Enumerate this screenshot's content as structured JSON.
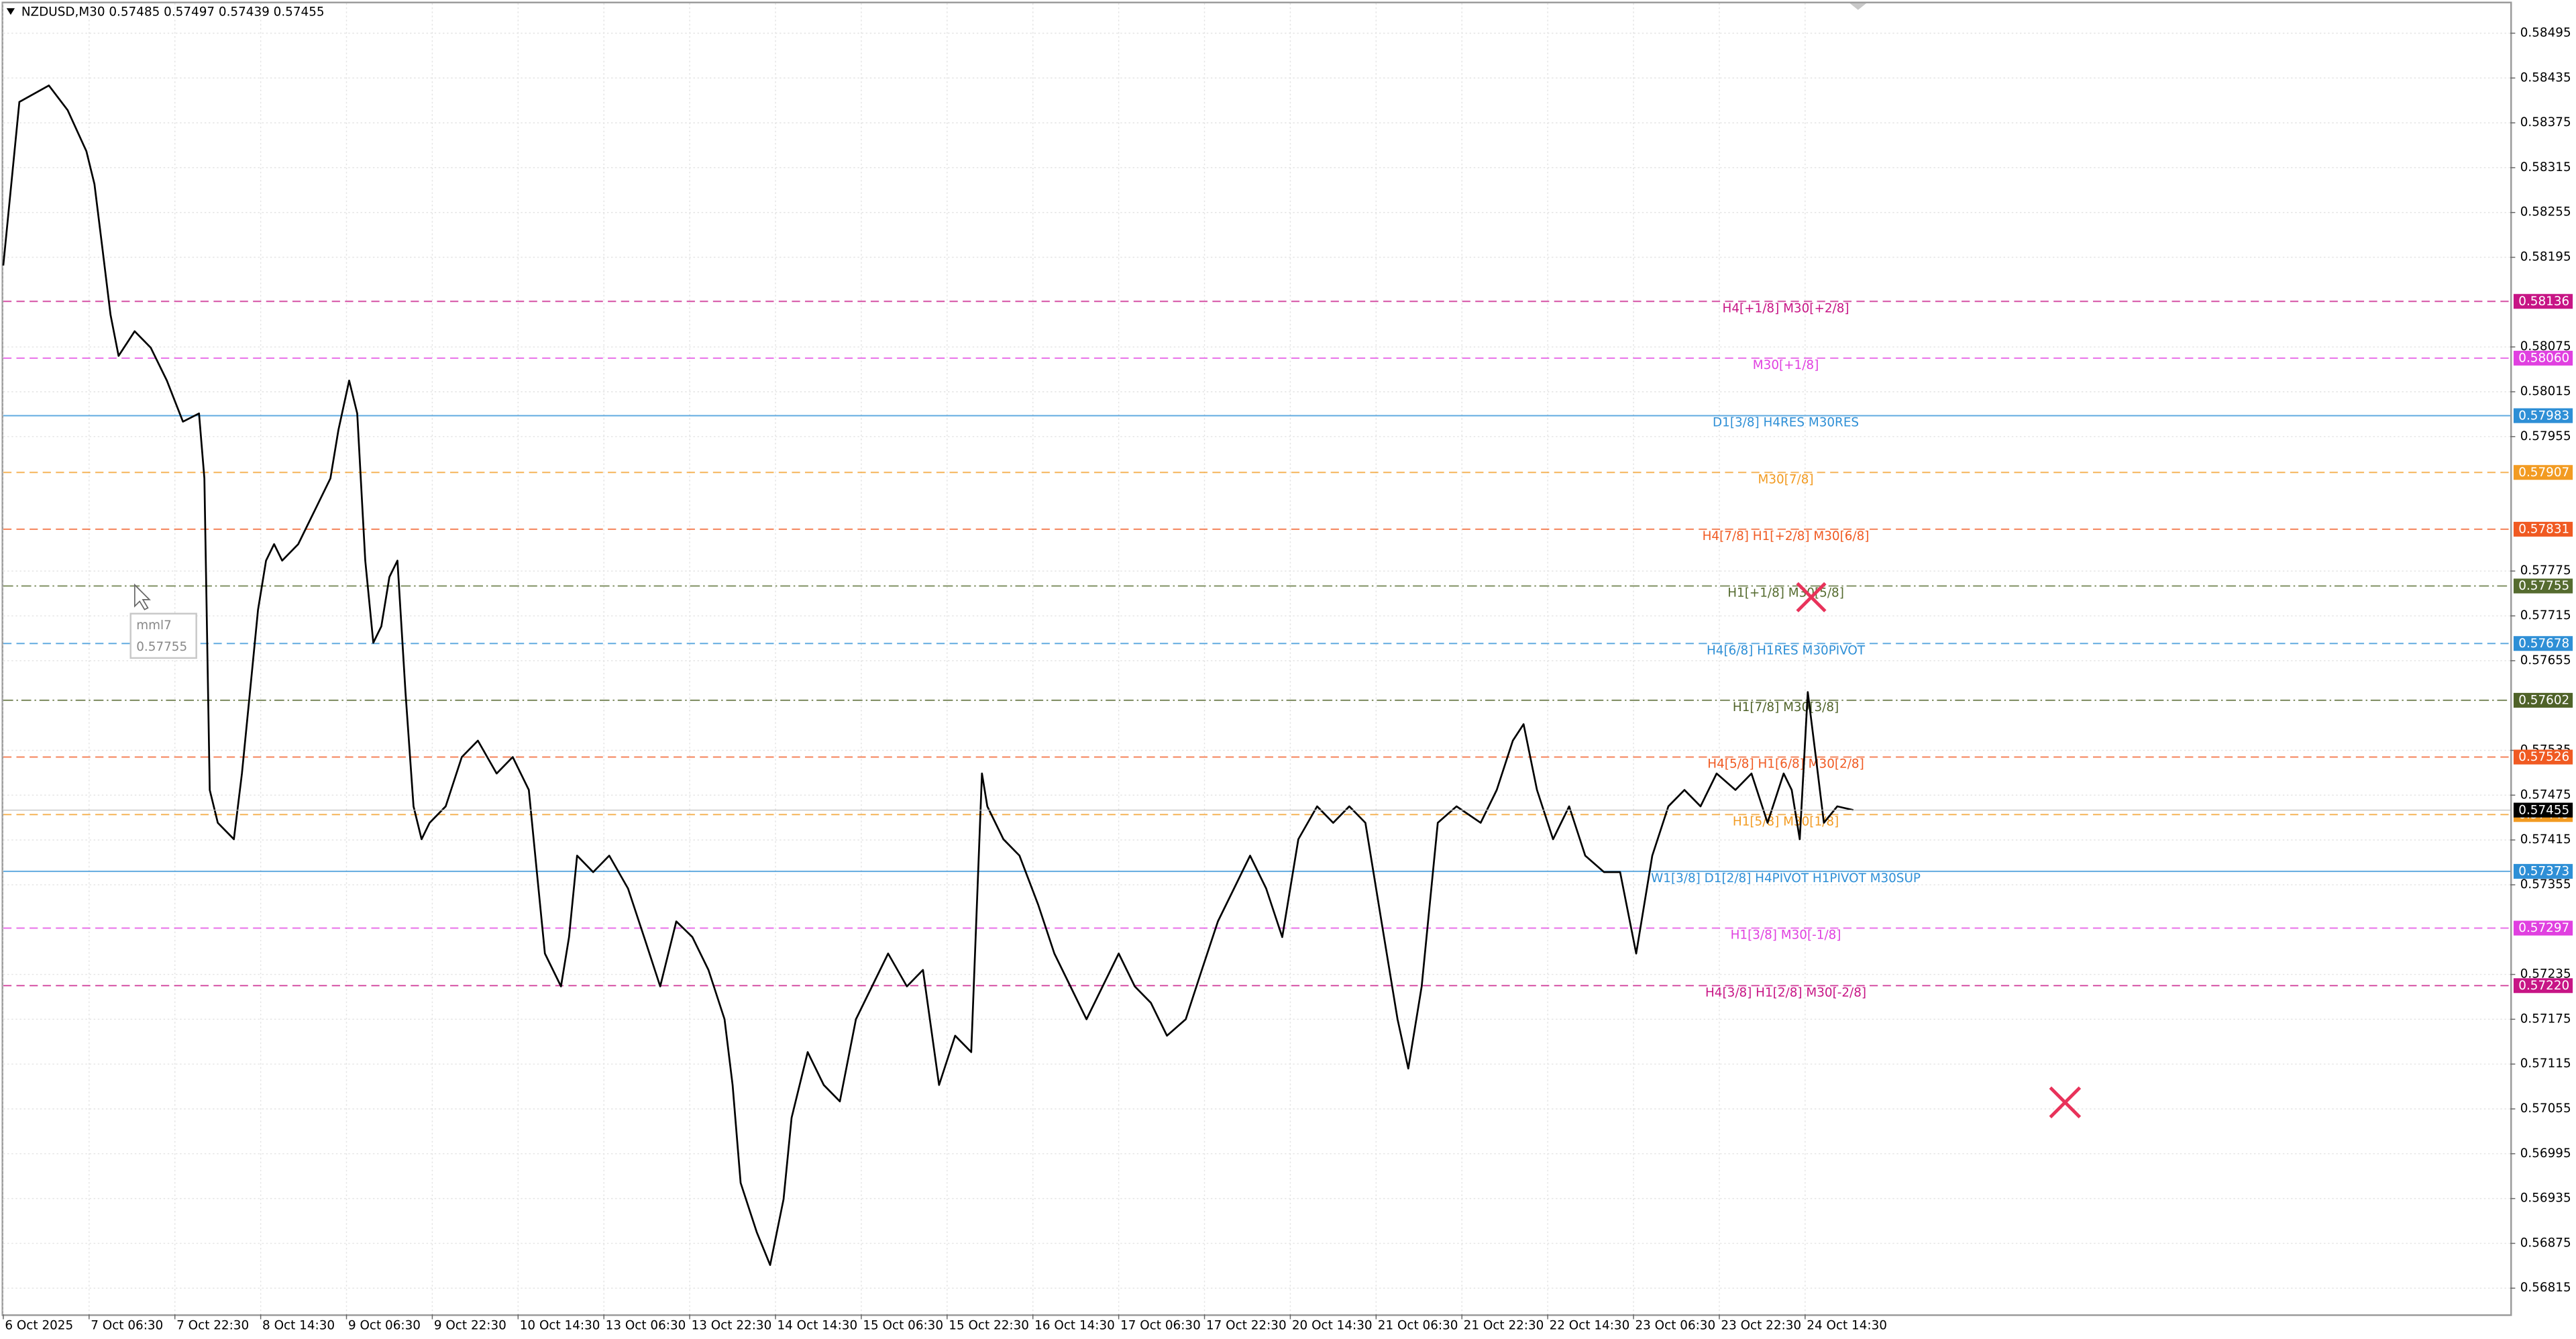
{
  "chart_data": {
    "type": "line",
    "title": "NZDUSD,M30  0.57485 0.57497 0.57439 0.57455",
    "color": "#000000",
    "grid": true,
    "x": [
      0,
      6,
      17,
      24,
      31,
      34,
      37,
      40,
      43,
      49,
      55,
      61,
      67,
      73,
      75,
      77,
      80,
      86,
      89,
      92,
      95,
      98,
      101,
      104,
      110,
      116,
      122,
      125,
      129,
      132,
      135,
      138,
      141,
      144,
      147,
      150,
      153,
      156,
      159,
      165,
      171,
      177,
      184,
      190,
      196,
      199,
      202,
      208,
      211,
      214,
      220,
      226,
      233,
      239,
      245,
      251,
      257,
      263,
      269,
      272,
      275,
      281,
      286,
      291,
      294,
      300,
      306,
      312,
      318,
      324,
      330,
      337,
      343,
      349,
      355,
      361,
      365,
      367,
      373,
      379,
      386,
      392,
      398,
      404,
      410,
      416,
      422,
      428,
      434,
      441,
      447,
      453,
      459,
      465,
      471,
      477,
      483,
      490,
      496,
      502,
      508,
      514,
      520,
      524,
      529,
      535,
      542,
      551,
      557,
      563,
      567,
      572,
      578,
      584,
      590,
      597,
      603,
      609,
      615,
      621,
      627,
      633,
      639,
      646,
      652,
      658,
      664,
      667,
      670,
      673,
      676,
      679,
      684,
      690
    ],
    "values": [
      0.58184,
      0.58403,
      0.58425,
      0.58392,
      0.58337,
      0.58293,
      0.58206,
      0.58118,
      0.58063,
      0.58096,
      0.58074,
      0.5803,
      0.57975,
      0.57986,
      0.57899,
      0.57482,
      0.57438,
      0.57416,
      0.57504,
      0.57613,
      0.57723,
      0.57789,
      0.57811,
      0.57789,
      0.57811,
      0.57855,
      0.57899,
      0.57964,
      0.5803,
      0.57986,
      0.57789,
      0.57679,
      0.57701,
      0.57767,
      0.57789,
      0.57613,
      0.5746,
      0.57416,
      0.57438,
      0.5746,
      0.57526,
      0.57548,
      0.57504,
      0.57526,
      0.57482,
      0.57372,
      0.57263,
      0.57219,
      0.57285,
      0.57394,
      0.57372,
      0.57394,
      0.5735,
      0.57285,
      0.57219,
      0.57306,
      0.57285,
      0.57241,
      0.57175,
      0.57087,
      0.56956,
      0.5689,
      0.56846,
      0.56934,
      0.57043,
      0.57131,
      0.57087,
      0.57065,
      0.57175,
      0.57219,
      0.57263,
      0.57219,
      0.57241,
      0.57087,
      0.57153,
      0.57131,
      0.57504,
      0.5746,
      0.57416,
      0.57394,
      0.57328,
      0.57263,
      0.57219,
      0.57175,
      0.57219,
      0.57263,
      0.57219,
      0.57197,
      0.57153,
      0.57175,
      0.57241,
      0.57306,
      0.5735,
      0.57394,
      0.5735,
      0.57285,
      0.57416,
      0.5746,
      0.57438,
      0.5746,
      0.57438,
      0.57306,
      0.57175,
      0.57109,
      0.57219,
      0.57438,
      0.5746,
      0.57438,
      0.57482,
      0.57548,
      0.5757,
      0.57482,
      0.57416,
      0.5746,
      0.57394,
      0.57372,
      0.57372,
      0.57263,
      0.57394,
      0.5746,
      0.57482,
      0.5746,
      0.57504,
      0.57482,
      0.57504,
      0.57438,
      0.57504,
      0.57482,
      0.57416,
      0.57613,
      0.57526,
      0.57438,
      0.5746,
      0.57455
    ],
    "xlim": [
      0,
      935
    ],
    "xticks": [
      {
        "value": 0,
        "label": "6 Oct 2025"
      },
      {
        "value": 32,
        "label": "7 Oct 06:30"
      },
      {
        "value": 64,
        "label": "7 Oct 22:30"
      },
      {
        "value": 96,
        "label": "8 Oct 14:30"
      },
      {
        "value": 128,
        "label": "9 Oct 06:30"
      },
      {
        "value": 160,
        "label": "9 Oct 22:30"
      },
      {
        "value": 192,
        "label": "10 Oct 14:30"
      },
      {
        "value": 224,
        "label": "13 Oct 06:30"
      },
      {
        "value": 256,
        "label": "13 Oct 22:30"
      },
      {
        "value": 288,
        "label": "14 Oct 14:30"
      },
      {
        "value": 320,
        "label": "15 Oct 06:30"
      },
      {
        "value": 352,
        "label": "15 Oct 22:30"
      },
      {
        "value": 384,
        "label": "16 Oct 14:30"
      },
      {
        "value": 416,
        "label": "17 Oct 06:30"
      },
      {
        "value": 448,
        "label": "17 Oct 22:30"
      },
      {
        "value": 480,
        "label": "20 Oct 14:30"
      },
      {
        "value": 512,
        "label": "21 Oct 06:30"
      },
      {
        "value": 544,
        "label": "21 Oct 22:30"
      },
      {
        "value": 576,
        "label": "22 Oct 14:30"
      },
      {
        "value": 608,
        "label": "23 Oct 06:30"
      },
      {
        "value": 640,
        "label": "23 Oct 22:30"
      },
      {
        "value": 672,
        "label": "24 Oct 14:30"
      }
    ],
    "ylim": [
      0.5678,
      0.58535
    ],
    "yticks": [
      0.58495,
      0.58435,
      0.58375,
      0.58315,
      0.58255,
      0.58195,
      0.58075,
      0.58015,
      0.57955,
      0.57775,
      0.57715,
      0.57655,
      0.57535,
      0.57475,
      0.57415,
      0.57355,
      0.57235,
      0.57175,
      0.57115,
      0.57055,
      0.56995,
      0.56935,
      0.56875,
      0.56815
    ],
    "levels": [
      {
        "label": "H4[+1/8] M30[+2/8]",
        "value": 0.58136,
        "color": "#c71585",
        "style": "dashed"
      },
      {
        "label": "M30[+1/8]",
        "value": 0.5806,
        "value_label": "0.58060",
        "color": "#e040e0",
        "style": "dashed"
      },
      {
        "label": "D1[3/8] H4RES M30RES",
        "value": 0.57983,
        "color": "#2e8fd6",
        "style": "solid"
      },
      {
        "label": "M30[7/8]",
        "value": 0.57907,
        "color": "#f29b22",
        "style": "dashed"
      },
      {
        "label": "H4[7/8] H1[+2/8] M30[6/8]",
        "value": 0.57831,
        "color": "#f05a22",
        "style": "dashed"
      },
      {
        "label": "H1[+1/8] M30[5/8]",
        "value": 0.57755,
        "color": "#556b2f",
        "style": "dashdot"
      },
      {
        "label": "H4[6/8] H1RES M30PIVOT",
        "value": 0.57678,
        "color": "#2e8fd6",
        "style": "dashed"
      },
      {
        "label": "H1[7/8] M30[3/8]",
        "value": 0.57602,
        "color": "#4f6228",
        "style": "dashdot"
      },
      {
        "label": "H4[5/8] H1[6/8] M30[2/8]",
        "value": 0.57526,
        "color": "#f05a22",
        "style": "dashed"
      },
      {
        "label": "H1[5/8] M30[1/8]",
        "value": 0.57449,
        "color": "#f29b22",
        "style": "dashed"
      },
      {
        "label": "W1[3/8] D1[2/8] H4PIVOT H1PIVOT M30SUP",
        "value": 0.57373,
        "color": "#2e8fd6",
        "style": "solid"
      },
      {
        "label": "H1[3/8] M30[-1/8]",
        "value": 0.57297,
        "color": "#e040e0",
        "style": "dashed"
      },
      {
        "label": "H4[3/8] H1[2/8] M30[-2/8]",
        "value": 0.5722,
        "value_label": "0.57220",
        "color": "#c71585",
        "style": "dashed"
      }
    ],
    "last_price": 0.57455,
    "tooltip": {
      "name": "mml7",
      "value": 0.57755
    }
  }
}
